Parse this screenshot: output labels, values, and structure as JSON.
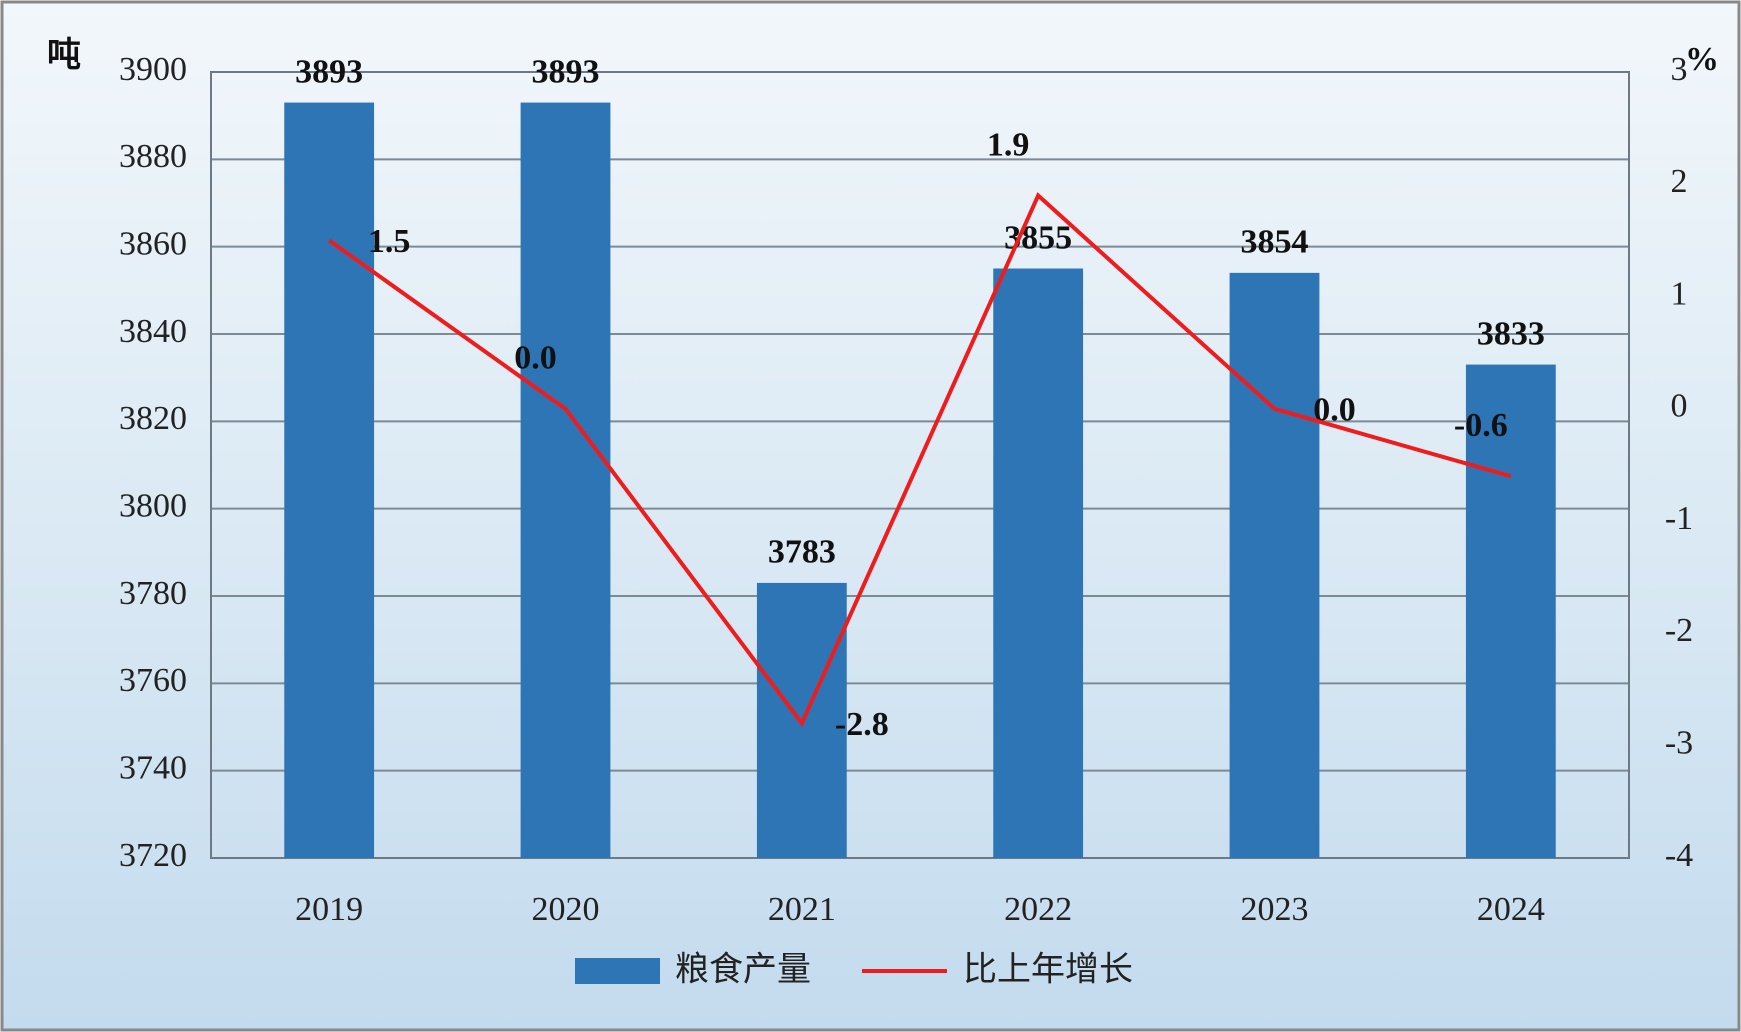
{
  "chart_data": {
    "type": "bar",
    "y_label": "吨",
    "y2_label": "%",
    "categories": [
      "2019",
      "2020",
      "2021",
      "2022",
      "2023",
      "2024"
    ],
    "series": [
      {
        "name": "粮食产量",
        "color": "#2e75b6",
        "values": [
          3893,
          3893,
          3783,
          3855,
          3854,
          3833
        ]
      },
      {
        "name": "比上年增长",
        "color": "#ee1c1c",
        "type": "line",
        "axis": "y2",
        "values": [
          1.5,
          0,
          -2.8,
          1.9,
          0,
          -0.6
        ],
        "value_labels": [
          "1.5",
          "0.0",
          "-2.8",
          "1.9",
          "0.0",
          "-0.6"
        ]
      }
    ],
    "ylim": [
      3720,
      3900
    ],
    "yticks": [
      3720,
      3740,
      3760,
      3780,
      3800,
      3820,
      3840,
      3860,
      3880,
      3900
    ],
    "y2lim": [
      -4,
      3
    ],
    "y2ticks": [
      -4,
      -3,
      -2,
      -1,
      0,
      1,
      2,
      3
    ],
    "grid": true,
    "legend": "bottom"
  }
}
